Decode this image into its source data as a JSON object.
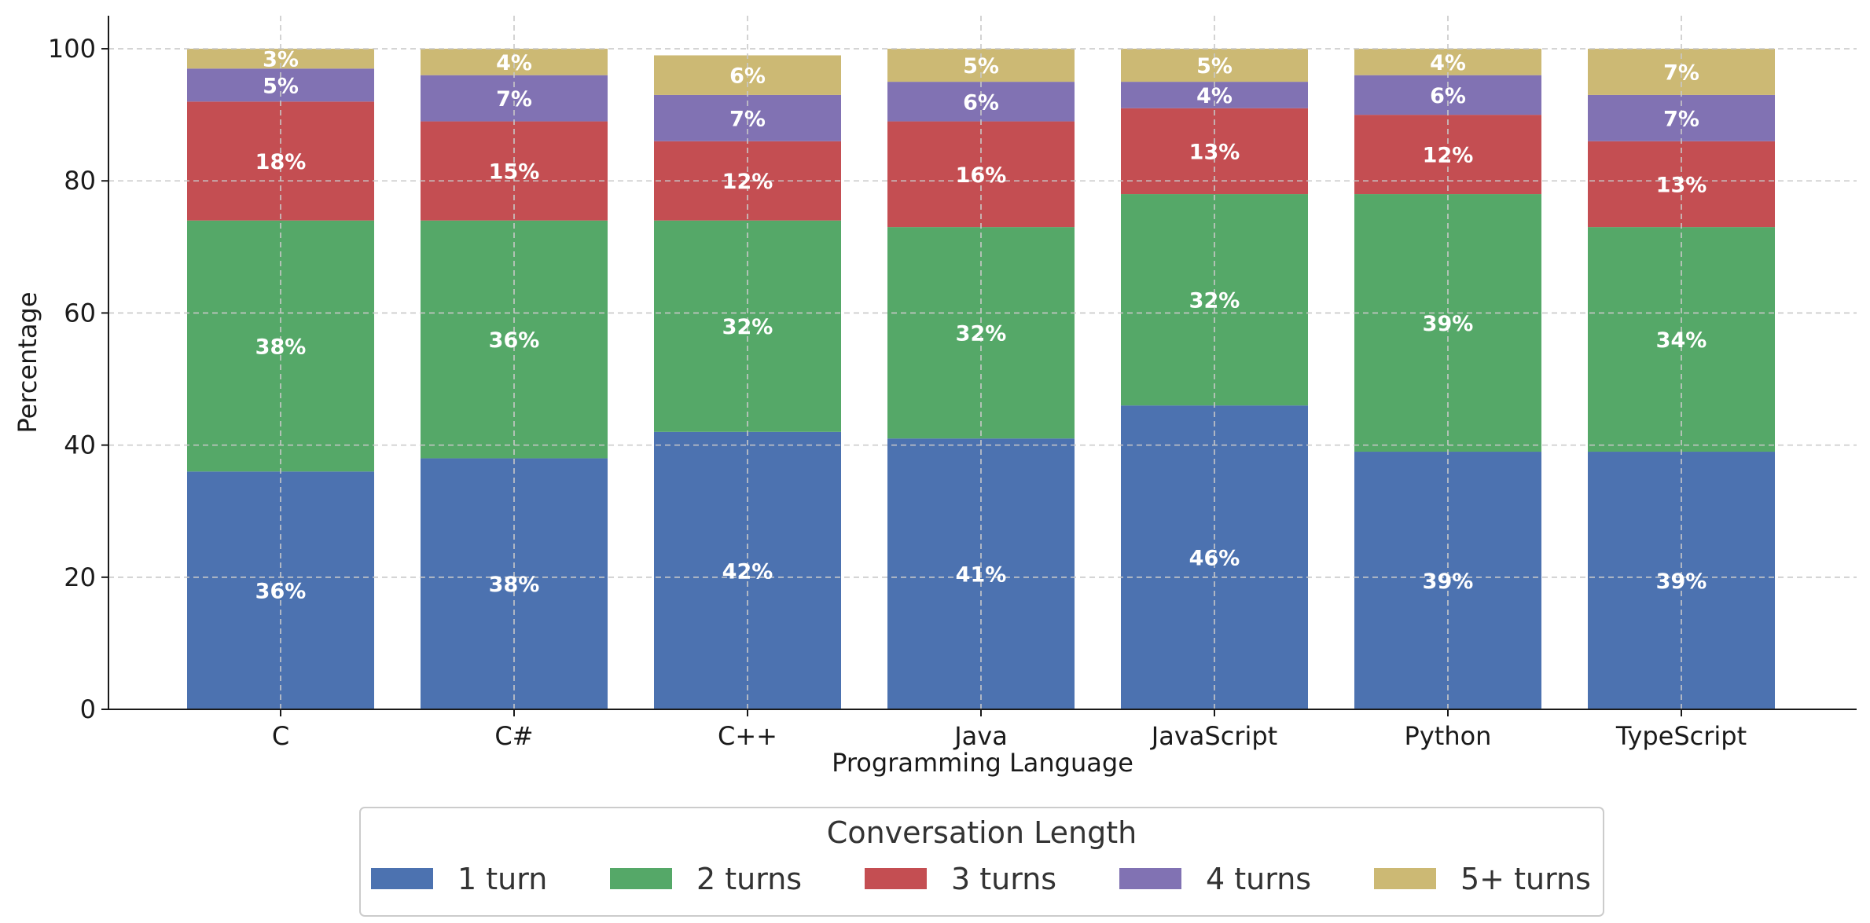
{
  "chart_data": {
    "type": "bar",
    "stacked": true,
    "xlabel": "Programming Language",
    "ylabel": "Percentage",
    "ylim": [
      0,
      105
    ],
    "yticks": [
      0,
      20,
      40,
      60,
      80,
      100
    ],
    "grid": true,
    "categories": [
      "C",
      "C#",
      "C++",
      "Java",
      "JavaScript",
      "Python",
      "TypeScript"
    ],
    "series": [
      {
        "name": "1 turn",
        "color": "#4c72b0",
        "values": [
          36,
          38,
          42,
          41,
          46,
          39,
          39
        ]
      },
      {
        "name": "2 turns",
        "color": "#55a868",
        "values": [
          38,
          36,
          32,
          32,
          32,
          39,
          34
        ]
      },
      {
        "name": "3 turns",
        "color": "#c44e52",
        "values": [
          18,
          15,
          12,
          16,
          13,
          12,
          13
        ]
      },
      {
        "name": "4 turns",
        "color": "#8172b3",
        "values": [
          5,
          7,
          7,
          6,
          4,
          6,
          7
        ]
      },
      {
        "name": "5+ turns",
        "color": "#ccb974",
        "values": [
          3,
          4,
          6,
          5,
          5,
          4,
          7
        ]
      }
    ],
    "value_label_suffix": "%",
    "legend": {
      "title": "Conversation Length",
      "placement": "bottom-center"
    }
  }
}
